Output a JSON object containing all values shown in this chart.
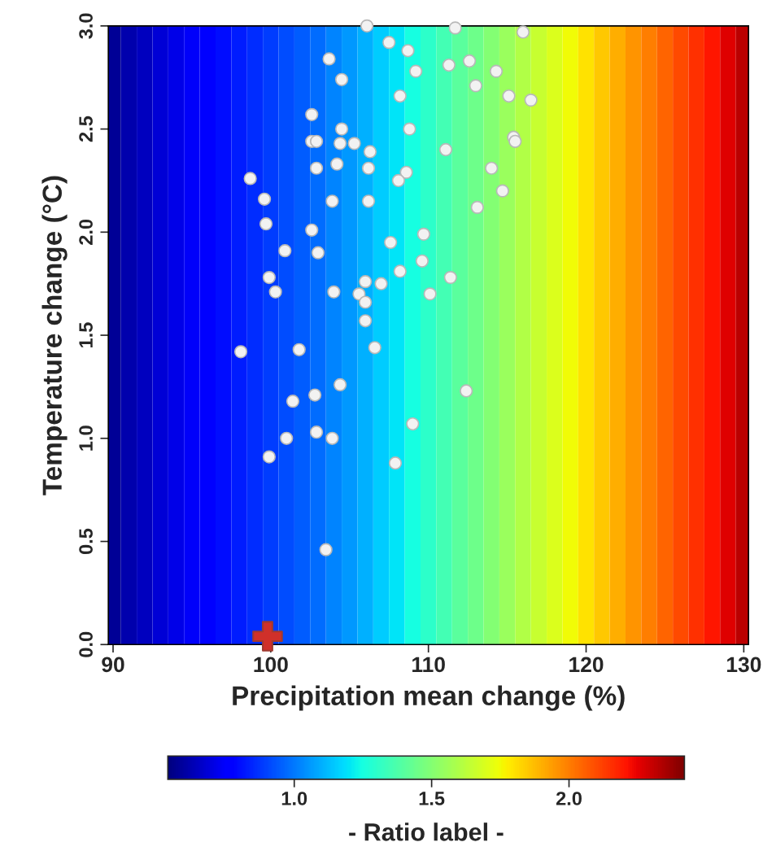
{
  "chart_data": {
    "type": "heatmap",
    "xlabel": "Precipitation mean change (%)",
    "ylabel": "Temperature change (°C)",
    "clabel": "- Ratio label -",
    "x": [
      90,
      91,
      92,
      93,
      94,
      95,
      96,
      97,
      98,
      99,
      100,
      101,
      102,
      103,
      104,
      105,
      106,
      107,
      108,
      109,
      110,
      111,
      112,
      113,
      114,
      115,
      116,
      117,
      118,
      119,
      120,
      121,
      122,
      123,
      124,
      125,
      126,
      127,
      128,
      129,
      130
    ],
    "cells": [
      [
        0.58,
        0.62,
        0.65,
        0.68,
        0.71,
        0.74,
        0.77,
        0.8,
        0.83,
        0.86,
        0.89,
        0.92,
        0.95,
        0.98,
        1.02,
        1.06,
        1.1,
        1.15,
        1.2,
        1.25,
        1.3,
        1.35,
        1.4,
        1.45,
        1.5,
        1.55,
        1.6,
        1.65,
        1.7,
        1.75,
        1.8,
        1.85,
        1.9,
        1.95,
        2.0,
        2.05,
        2.1,
        2.15,
        2.2,
        2.26,
        2.32
      ]
    ],
    "clim": [
      0.54,
      2.42
    ],
    "cticks": [
      {
        "value": 1.0,
        "label": "1.0"
      },
      {
        "value": 1.5,
        "label": "1.5"
      },
      {
        "value": 2.0,
        "label": "2.0"
      }
    ],
    "series": [
      {
        "type": "scatter",
        "marker": "circle",
        "color": "#f2f2f2",
        "x": [
          106.1,
          111.7,
          116.0,
          107.5,
          108.7,
          103.7,
          111.3,
          112.6,
          114.3,
          109.2,
          104.5,
          113.0,
          108.2,
          115.1,
          116.5,
          102.6,
          104.5,
          108.8,
          102.6,
          102.9,
          104.4,
          105.3,
          106.3,
          111.1,
          115.4,
          115.5,
          104.2,
          102.9,
          106.2,
          108.6,
          108.1,
          98.7,
          114.0,
          114.7,
          99.6,
          103.9,
          106.2,
          113.1,
          99.7,
          102.6,
          109.7,
          107.6,
          100.9,
          103.0,
          109.6,
          108.2,
          99.9,
          111.4,
          106.0,
          107.0,
          104.0,
          100.3,
          105.6,
          110.1,
          106.0,
          106.0,
          98.1,
          101.8,
          106.6,
          112.4,
          104.4,
          102.8,
          101.4,
          109.0,
          101.0,
          102.9,
          103.9,
          99.9,
          107.9,
          103.5
        ],
        "values": [
          3.0,
          2.99,
          2.97,
          2.92,
          2.88,
          2.84,
          2.81,
          2.83,
          2.78,
          2.78,
          2.74,
          2.71,
          2.66,
          2.66,
          2.64,
          2.57,
          2.5,
          2.5,
          2.44,
          2.44,
          2.43,
          2.43,
          2.39,
          2.4,
          2.46,
          2.44,
          2.33,
          2.31,
          2.31,
          2.29,
          2.25,
          2.26,
          2.31,
          2.2,
          2.16,
          2.15,
          2.15,
          2.12,
          2.04,
          2.01,
          1.99,
          1.95,
          1.91,
          1.9,
          1.86,
          1.81,
          1.78,
          1.78,
          1.76,
          1.75,
          1.71,
          1.71,
          1.7,
          1.7,
          1.66,
          1.57,
          1.42,
          1.43,
          1.44,
          1.23,
          1.26,
          1.21,
          1.18,
          1.07,
          1.0,
          1.03,
          1.0,
          0.91,
          0.88,
          0.46
        ]
      },
      {
        "type": "scatter",
        "marker": "cross",
        "color": "#d0302a",
        "x": [
          99.8
        ],
        "values": [
          0.04
        ]
      }
    ],
    "xlim": [
      89.7,
      130.3
    ],
    "ylim": [
      0,
      3
    ],
    "xticks": [
      90,
      100,
      110,
      120,
      130
    ],
    "yticks": [
      {
        "value": 0,
        "label": "0.0"
      },
      {
        "value": 0.5,
        "label": "0.5"
      },
      {
        "value": 1,
        "label": "1.0"
      },
      {
        "value": 1.5,
        "label": "1.5"
      },
      {
        "value": 2,
        "label": "2.0"
      },
      {
        "value": 2.5,
        "label": "2.5"
      },
      {
        "value": 3,
        "label": "3.0"
      }
    ],
    "grid": false,
    "legend": false
  }
}
